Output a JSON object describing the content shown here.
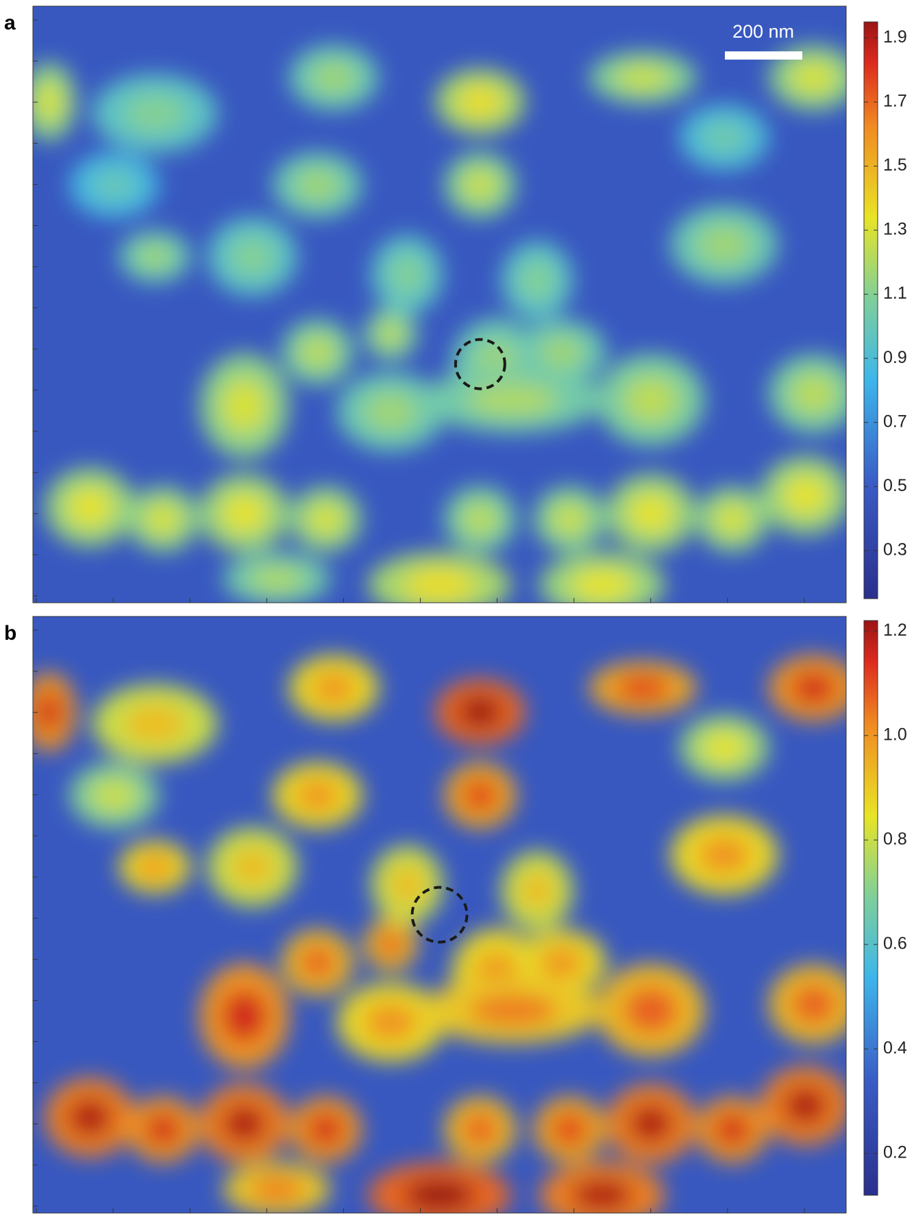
{
  "chart_data": [
    {
      "type": "heatmap",
      "panel_label": "a",
      "scale_bar_label": "200 nm",
      "colorbar": {
        "lim": [
          0.15,
          1.95
        ],
        "ticks": [
          0.3,
          0.5,
          0.7,
          0.9,
          1.1,
          1.3,
          1.5,
          1.7,
          1.9
        ]
      }
    },
    {
      "type": "heatmap",
      "panel_label": "b",
      "colorbar": {
        "lim": [
          0.12,
          1.22
        ],
        "ticks": [
          0.2,
          0.4,
          0.6,
          0.8,
          {
            "value": 1.0,
            "label": "1.0"
          },
          1.2
        ]
      }
    }
  ]
}
